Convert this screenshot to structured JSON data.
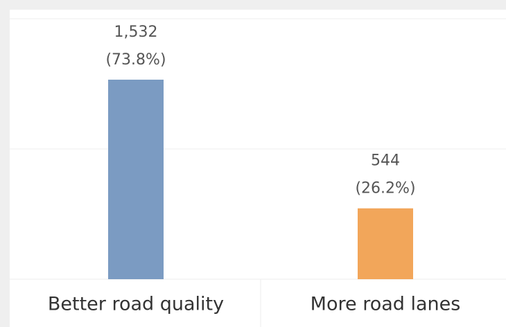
{
  "chart_data": {
    "type": "bar",
    "categories": [
      "Better road quality",
      "More road lanes"
    ],
    "values": [
      1532,
      544
    ],
    "value_labels": [
      "1,532",
      "544"
    ],
    "percent_labels": [
      "(73.8%)",
      "(26.2%)"
    ],
    "colors": [
      "#7b9bc2",
      "#f2a65a"
    ],
    "ylim": [
      0,
      2000
    ],
    "yticks": [
      0,
      1000,
      2000
    ],
    "grid": true,
    "tick_labels": false
  }
}
